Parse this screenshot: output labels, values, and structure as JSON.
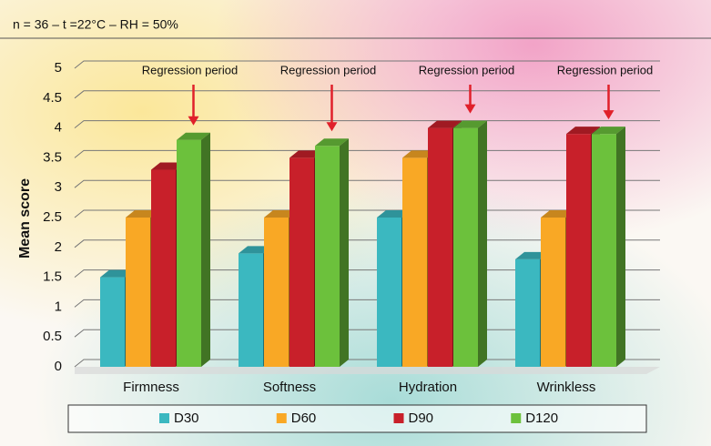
{
  "chart_data": {
    "type": "bar3d",
    "subtitle": "n = 36 – t =22°C – RH = 50%",
    "y_label": "Mean score",
    "categories": [
      "Firmness",
      "Softness",
      "Hydration",
      "Wrinkless"
    ],
    "series": [
      {
        "name": "D30",
        "color": "#3bb8c0",
        "values": [
          1.5,
          1.9,
          2.5,
          1.8
        ]
      },
      {
        "name": "D60",
        "color": "#f9a825",
        "values": [
          2.5,
          2.5,
          3.5,
          2.5
        ]
      },
      {
        "name": "D90",
        "color": "#c8202a",
        "values": [
          3.3,
          3.5,
          4.0,
          3.9
        ]
      },
      {
        "name": "D120",
        "color": "#6cc13c",
        "values": [
          3.8,
          3.7,
          4.0,
          3.9
        ]
      }
    ],
    "annotations": [
      "Regression period",
      "Regression period",
      "Regression period",
      "Regression period"
    ],
    "ylim": [
      0,
      5
    ],
    "yticks": [
      0,
      0.5,
      1,
      1.5,
      2,
      2.5,
      3,
      3.5,
      4,
      4.5,
      5
    ],
    "grid": true
  }
}
